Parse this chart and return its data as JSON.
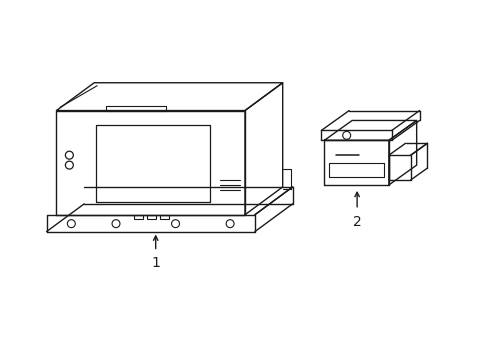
{
  "bg_color": "#ffffff",
  "line_color": "#1a1a1a",
  "line_width": 1.0,
  "fig_width": 4.89,
  "fig_height": 3.6,
  "label1": "1",
  "label2": "2"
}
